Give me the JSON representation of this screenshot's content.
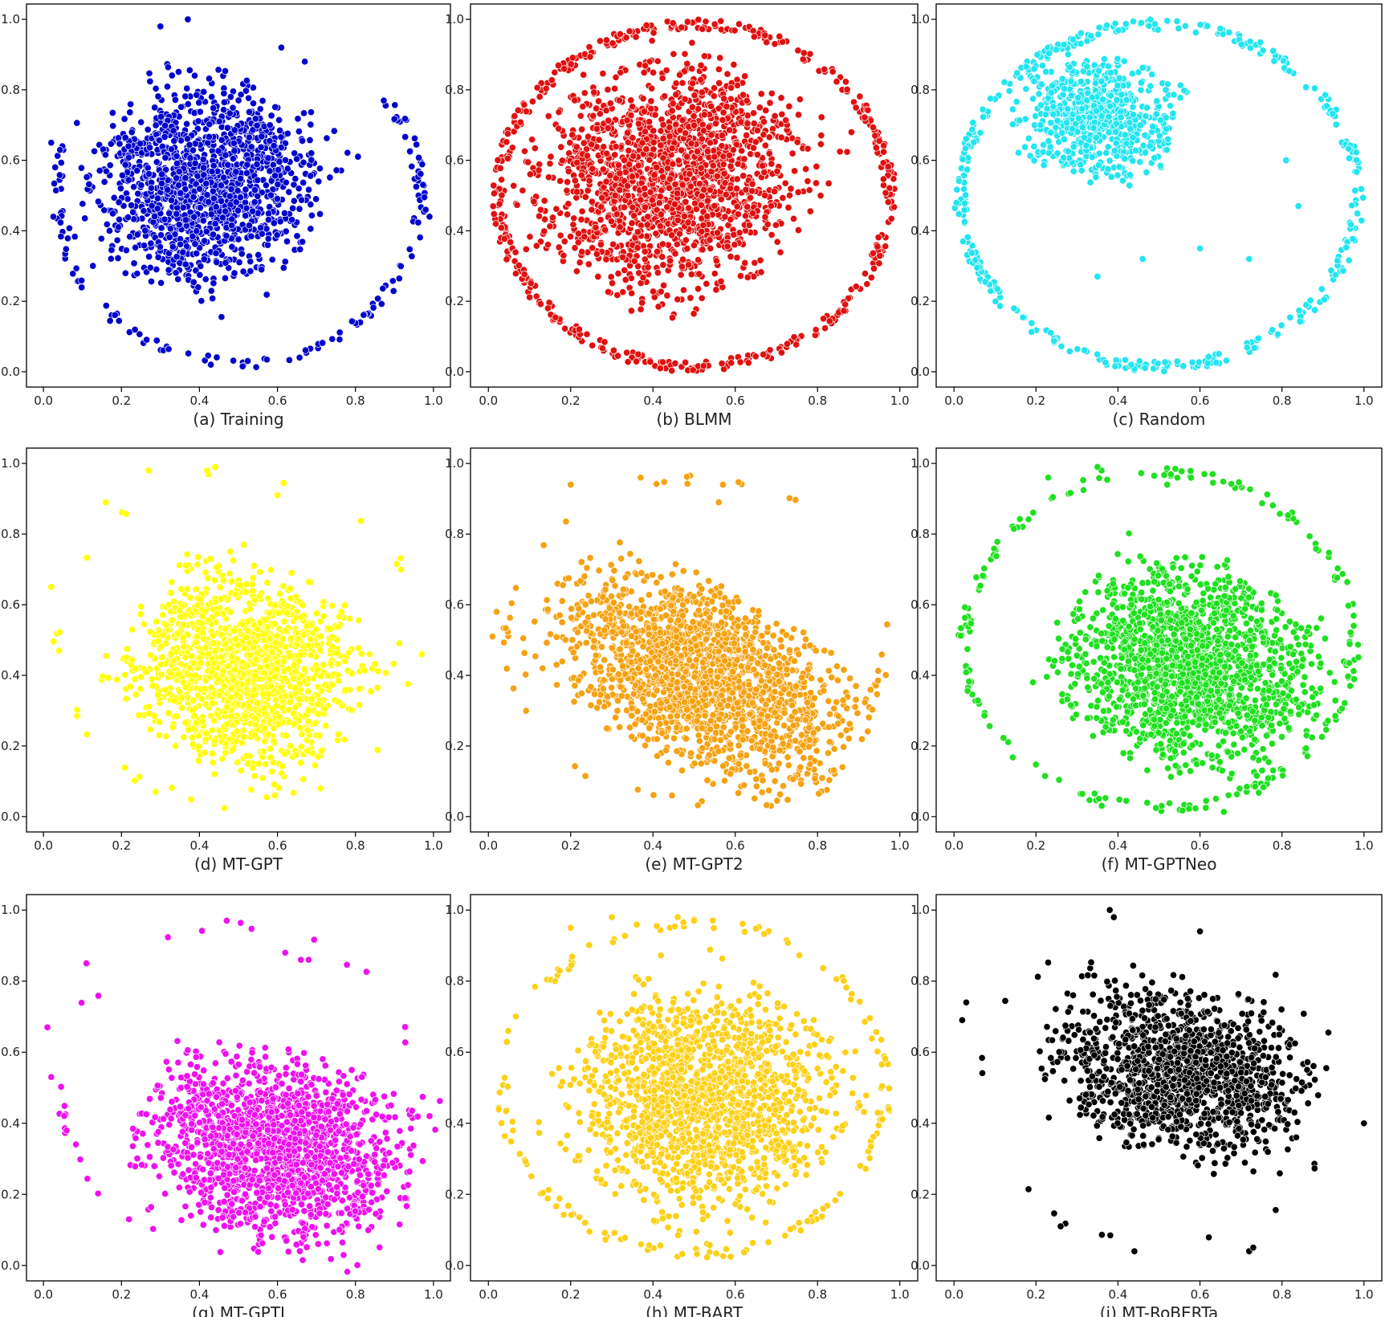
{
  "chart_data": [
    {
      "type": "scatter",
      "caption": "(a) Training",
      "color": "#0000cc",
      "xlim": [
        0,
        1
      ],
      "ylim": [
        0,
        1
      ],
      "xticks": [
        "0.0",
        "0.2",
        "0.4",
        "0.6",
        "0.8",
        "1.0"
      ],
      "yticks": [
        "0.0",
        "0.2",
        "0.4",
        "0.6",
        "0.8",
        "1.0"
      ],
      "cluster": {
        "center": [
          0.42,
          0.53
        ],
        "spread": [
          0.13,
          0.14
        ],
        "rotation_deg": -33,
        "count": 1400
      },
      "halo": {
        "center": [
          0.5,
          0.5
        ],
        "radius": [
          0.48,
          0.49
        ],
        "arc_deg": [
          150,
          400
        ],
        "count": 130
      },
      "outliers": [
        [
          0.02,
          0.65
        ],
        [
          0.03,
          0.58
        ],
        [
          0.98,
          0.46
        ],
        [
          0.99,
          0.44
        ],
        [
          0.37,
          1.0
        ],
        [
          0.3,
          0.98
        ],
        [
          0.61,
          0.92
        ],
        [
          0.67,
          0.88
        ]
      ]
    },
    {
      "type": "scatter",
      "caption": "(b) BLMM",
      "color": "#e01010",
      "xlim": [
        0,
        1
      ],
      "ylim": [
        0,
        1
      ],
      "xticks": [
        "0.0",
        "0.2",
        "0.4",
        "0.6",
        "0.8",
        "1.0"
      ],
      "yticks": [
        "0.0",
        "0.2",
        "0.4",
        "0.6",
        "0.8",
        "1.0"
      ],
      "cluster": {
        "center": [
          0.44,
          0.55
        ],
        "spread": [
          0.15,
          0.16
        ],
        "rotation_deg": -35,
        "count": 1700
      },
      "halo": {
        "center": [
          0.5,
          0.5
        ],
        "radius": [
          0.49,
          0.5
        ],
        "arc_deg": [
          0,
          360
        ],
        "count": 420
      },
      "outliers": []
    },
    {
      "type": "scatter",
      "caption": "(c) Random",
      "color": "#22e5f0",
      "xlim": [
        0,
        1
      ],
      "ylim": [
        0,
        1
      ],
      "xticks": [
        "0.0",
        "0.2",
        "0.4",
        "0.6",
        "0.8",
        "1.0"
      ],
      "yticks": [
        "0.0",
        "0.2",
        "0.4",
        "0.6",
        "0.8",
        "1.0"
      ],
      "cluster": {
        "center": [
          0.35,
          0.72
        ],
        "spread": [
          0.09,
          0.08
        ],
        "rotation_deg": -15,
        "count": 650
      },
      "halo": {
        "center": [
          0.5,
          0.5
        ],
        "radius": [
          0.5,
          0.5
        ],
        "arc_deg": [
          0,
          360
        ],
        "count": 380
      },
      "outliers": [
        [
          0.72,
          0.32
        ],
        [
          0.6,
          0.35
        ],
        [
          0.46,
          0.32
        ],
        [
          0.35,
          0.27
        ],
        [
          0.81,
          0.6
        ],
        [
          0.84,
          0.47
        ]
      ]
    },
    {
      "type": "scatter",
      "caption": "(d) MT-GPT",
      "color": "#ffff00",
      "xlim": [
        0,
        1
      ],
      "ylim": [
        0,
        1
      ],
      "xticks": [
        "0.0",
        "0.2",
        "0.4",
        "0.6",
        "0.8",
        "1.0"
      ],
      "yticks": [
        "0.0",
        "0.2",
        "0.4",
        "0.6",
        "0.8",
        "1.0"
      ],
      "cluster": {
        "center": [
          0.52,
          0.42
        ],
        "spread": [
          0.14,
          0.13
        ],
        "rotation_deg": -35,
        "count": 1400
      },
      "halo": {
        "center": [
          0.5,
          0.5
        ],
        "radius": [
          0.48,
          0.48
        ],
        "arc_deg": [
          0,
          360
        ],
        "count": 25
      },
      "outliers": [
        [
          0.27,
          0.98
        ],
        [
          0.44,
          0.99
        ],
        [
          0.42,
          0.98
        ],
        [
          0.6,
          0.91
        ],
        [
          0.16,
          0.89
        ],
        [
          0.02,
          0.65
        ],
        [
          0.04,
          0.47
        ],
        [
          0.97,
          0.46
        ]
      ]
    },
    {
      "type": "scatter",
      "caption": "(e) MT-GPT2",
      "color": "#f5a212",
      "xlim": [
        0,
        1
      ],
      "ylim": [
        0,
        1
      ],
      "xticks": [
        "0.0",
        "0.2",
        "0.4",
        "0.6",
        "0.8",
        "1.0"
      ],
      "yticks": [
        "0.0",
        "0.2",
        "0.4",
        "0.6",
        "0.8",
        "1.0"
      ],
      "cluster": {
        "center": [
          0.52,
          0.4
        ],
        "spread": [
          0.19,
          0.11
        ],
        "rotation_deg": -33,
        "count": 1700
      },
      "halo": {
        "center": [
          0.5,
          0.5
        ],
        "radius": [
          0.48,
          0.47
        ],
        "arc_deg": [
          0,
          360
        ],
        "count": 45
      },
      "outliers": [
        [
          0.2,
          0.94
        ],
        [
          0.37,
          0.96
        ],
        [
          0.57,
          0.94
        ],
        [
          0.56,
          0.89
        ],
        [
          0.01,
          0.51
        ],
        [
          0.02,
          0.58
        ]
      ]
    },
    {
      "type": "scatter",
      "caption": "(f) MT-GPTNeo",
      "color": "#1fe01f",
      "xlim": [
        0,
        1
      ],
      "ylim": [
        0,
        1
      ],
      "xticks": [
        "0.0",
        "0.2",
        "0.4",
        "0.6",
        "0.8",
        "1.0"
      ],
      "yticks": [
        "0.0",
        "0.2",
        "0.4",
        "0.6",
        "0.8",
        "1.0"
      ],
      "cluster": {
        "center": [
          0.58,
          0.42
        ],
        "spread": [
          0.15,
          0.13
        ],
        "rotation_deg": -35,
        "count": 1600
      },
      "halo": {
        "center": [
          0.5,
          0.5
        ],
        "radius": [
          0.49,
          0.49
        ],
        "arc_deg": [
          0,
          360
        ],
        "count": 190
      },
      "outliers": [
        [
          0.36,
          0.98
        ],
        [
          0.35,
          0.99
        ],
        [
          0.23,
          0.96
        ],
        [
          0.52,
          0.94
        ]
      ]
    },
    {
      "type": "scatter",
      "caption": "(g) MT-GPTJ",
      "color": "#ee11ee",
      "xlim": [
        0,
        1
      ],
      "ylim": [
        0,
        1
      ],
      "xticks": [
        "0.0",
        "0.2",
        "0.4",
        "0.6",
        "0.8",
        "1.0"
      ],
      "yticks": [
        "0.0",
        "0.2",
        "0.4",
        "0.6",
        "0.8",
        "1.0"
      ],
      "cluster": {
        "center": [
          0.6,
          0.33
        ],
        "spread": [
          0.16,
          0.12
        ],
        "rotation_deg": -20,
        "count": 1600
      },
      "halo": {
        "center": [
          0.5,
          0.5
        ],
        "radius": [
          0.47,
          0.47
        ],
        "arc_deg": [
          0,
          360
        ],
        "count": 35
      },
      "outliers": [
        [
          0.47,
          0.97
        ],
        [
          0.11,
          0.85
        ],
        [
          0.62,
          0.88
        ],
        [
          0.66,
          0.86
        ],
        [
          0.68,
          0.86
        ],
        [
          0.01,
          0.67
        ],
        [
          0.02,
          0.53
        ],
        [
          0.99,
          0.42
        ]
      ]
    },
    {
      "type": "scatter",
      "caption": "(h) MT-BART",
      "color": "#fdd017",
      "xlim": [
        0,
        1
      ],
      "ylim": [
        0,
        1
      ],
      "xticks": [
        "0.0",
        "0.2",
        "0.4",
        "0.6",
        "0.8",
        "1.0"
      ],
      "yticks": [
        "0.0",
        "0.2",
        "0.4",
        "0.6",
        "0.8",
        "1.0"
      ],
      "cluster": {
        "center": [
          0.52,
          0.47
        ],
        "spread": [
          0.15,
          0.15
        ],
        "rotation_deg": -38,
        "count": 1600
      },
      "halo": {
        "center": [
          0.5,
          0.5
        ],
        "radius": [
          0.48,
          0.48
        ],
        "arc_deg": [
          0,
          360
        ],
        "count": 150
      },
      "outliers": [
        [
          0.3,
          0.98
        ],
        [
          0.2,
          0.95
        ],
        [
          0.46,
          0.98
        ],
        [
          0.5,
          0.97
        ]
      ]
    },
    {
      "type": "scatter",
      "caption": "(i) MT-RoBERTa",
      "color": "#000000",
      "xlim": [
        0,
        1
      ],
      "ylim": [
        0,
        1
      ],
      "xticks": [
        "0.0",
        "0.2",
        "0.4",
        "0.6",
        "0.8",
        "1.0"
      ],
      "yticks": [
        "0.0",
        "0.2",
        "0.4",
        "0.6",
        "0.8",
        "1.0"
      ],
      "cluster": {
        "center": [
          0.55,
          0.55
        ],
        "spread": [
          0.15,
          0.11
        ],
        "rotation_deg": -18,
        "count": 1300
      },
      "halo": {
        "center": [
          0.5,
          0.5
        ],
        "radius": [
          0.45,
          0.45
        ],
        "arc_deg": [
          0,
          360
        ],
        "count": 15
      },
      "outliers": [
        [
          0.38,
          1.0
        ],
        [
          0.39,
          0.98
        ],
        [
          0.6,
          0.94
        ],
        [
          1.0,
          0.4
        ],
        [
          0.03,
          0.74
        ],
        [
          0.02,
          0.69
        ],
        [
          0.44,
          0.04
        ],
        [
          0.72,
          0.04
        ],
        [
          0.73,
          0.05
        ],
        [
          0.26,
          0.11
        ]
      ]
    }
  ]
}
